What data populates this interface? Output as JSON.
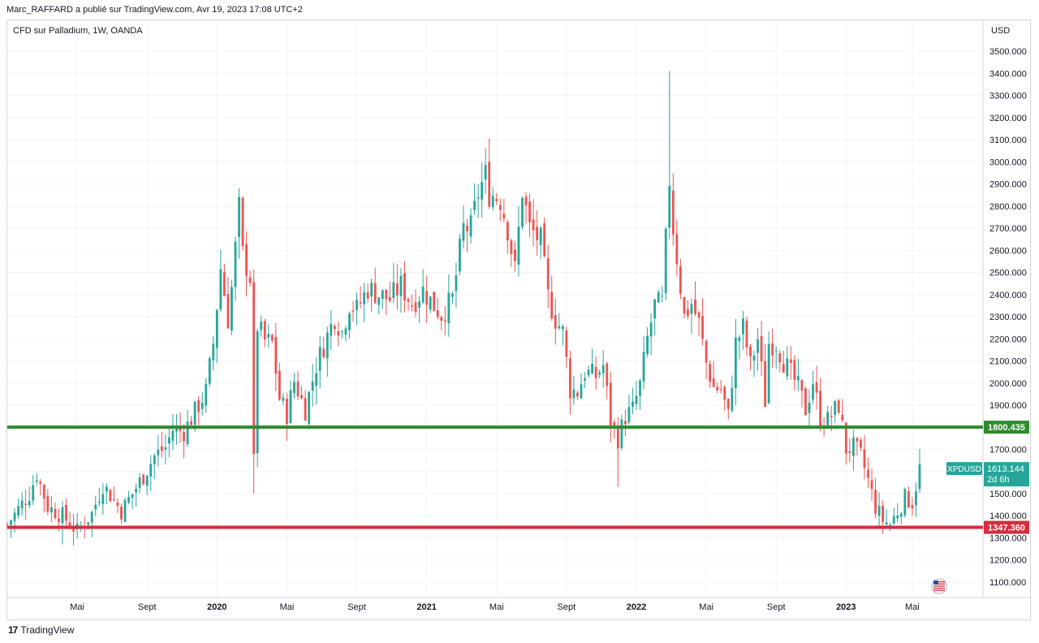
{
  "header": {
    "publisher_line": "Marc_RAFFARD a publié sur TradingView.com, Avr 19, 2023 17:08 UTC+2"
  },
  "chart": {
    "symbol_title": "CFD sur Palladium, 1W, OANDA"
  },
  "footer": {
    "brand": "TradingView"
  },
  "colors": {
    "up": "#26a69a",
    "down": "#ef5350",
    "grid": "#f0f3fa",
    "support_green": "#2e8b2e",
    "support_red": "#d32f3f",
    "price_tag": "#26a69a"
  },
  "chart_data": {
    "type": "candlestick",
    "title": "CFD sur Palladium, 1W, OANDA",
    "currency_label": "USD",
    "ylim": [
      1030,
      3640
    ],
    "y_ticks": [
      1100,
      1200,
      1300,
      1400,
      1500,
      1600,
      1700,
      1800,
      1900,
      2000,
      2100,
      2200,
      2300,
      2400,
      2500,
      2600,
      2700,
      2800,
      2900,
      3000,
      3100,
      3200,
      3300,
      3400,
      3500
    ],
    "y_tick_labels": [
      "1100.000",
      "1200.000",
      "1300.000",
      "1400.000",
      "1500.000",
      "1600.000",
      "1700.000",
      "1800.000",
      "1900.000",
      "2000.000",
      "2100.000",
      "2200.000",
      "2300.000",
      "2400.000",
      "2500.000",
      "2600.000",
      "2700.000",
      "2800.000",
      "2900.000",
      "3000.000",
      "3100.000",
      "3200.000",
      "3300.000",
      "3400.000",
      "3500.000"
    ],
    "x_ticks": [
      {
        "week": 19,
        "label": "Mai",
        "bold": false
      },
      {
        "week": 38,
        "label": "Sept",
        "bold": false
      },
      {
        "week": 57,
        "label": "2020",
        "bold": true
      },
      {
        "week": 76,
        "label": "Mai",
        "bold": false
      },
      {
        "week": 95,
        "label": "Sept",
        "bold": false
      },
      {
        "week": 114,
        "label": "2021",
        "bold": true
      },
      {
        "week": 133,
        "label": "Mai",
        "bold": false
      },
      {
        "week": 152,
        "label": "Sept",
        "bold": false
      },
      {
        "week": 171,
        "label": "2022",
        "bold": true
      },
      {
        "week": 190,
        "label": "Mai",
        "bold": false
      },
      {
        "week": 209,
        "label": "Sept",
        "bold": false
      },
      {
        "week": 228,
        "label": "2023",
        "bold": true
      },
      {
        "week": 246,
        "label": "Mai",
        "bold": false
      }
    ],
    "x_range_weeks": [
      0,
      265
    ],
    "horizontal_lines": [
      {
        "value": 1800.435,
        "label": "1800.435",
        "color": "#2e8b2e"
      },
      {
        "value": 1347.36,
        "label": "1347.360",
        "color": "#d32f3f"
      }
    ],
    "last_price": {
      "symbol": "XPDUSD",
      "value": "1613.144",
      "countdown": "2d 6h"
    },
    "close_path": [
      [
        0,
        1360
      ],
      [
        6,
        1500
      ],
      [
        8,
        1590
      ],
      [
        11,
        1440
      ],
      [
        15,
        1400
      ],
      [
        19,
        1330
      ],
      [
        23,
        1410
      ],
      [
        26,
        1540
      ],
      [
        29,
        1470
      ],
      [
        31,
        1420
      ],
      [
        34,
        1500
      ],
      [
        37,
        1580
      ],
      [
        40,
        1670
      ],
      [
        43,
        1710
      ],
      [
        45,
        1790
      ],
      [
        48,
        1780
      ],
      [
        51,
        1870
      ],
      [
        54,
        1960
      ],
      [
        56,
        2180
      ],
      [
        58,
        2520
      ],
      [
        60,
        2290
      ],
      [
        61,
        2430
      ],
      [
        63,
        2790
      ],
      [
        64,
        2580
      ],
      [
        66,
        2480
      ],
      [
        67,
        1640
      ],
      [
        68,
        2260
      ],
      [
        70,
        2190
      ],
      [
        72,
        2180
      ],
      [
        74,
        1930
      ],
      [
        76,
        1860
      ],
      [
        78,
        2010
      ],
      [
        81,
        1880
      ],
      [
        84,
        2080
      ],
      [
        86,
        2170
      ],
      [
        89,
        2300
      ],
      [
        91,
        2230
      ],
      [
        93,
        2360
      ],
      [
        95,
        2330
      ],
      [
        98,
        2430
      ],
      [
        101,
        2400
      ],
      [
        104,
        2380
      ],
      [
        107,
        2440
      ],
      [
        110,
        2360
      ],
      [
        113,
        2420
      ],
      [
        116,
        2350
      ],
      [
        118,
        2310
      ],
      [
        121,
        2380
      ],
      [
        124,
        2700
      ],
      [
        126,
        2700
      ],
      [
        128,
        2860
      ],
      [
        130,
        2940
      ],
      [
        131,
        2860
      ],
      [
        134,
        2830
      ],
      [
        136,
        2700
      ],
      [
        138,
        2510
      ],
      [
        140,
        2870
      ],
      [
        142,
        2700
      ],
      [
        145,
        2640
      ],
      [
        147,
        2390
      ],
      [
        149,
        2290
      ],
      [
        151,
        2230
      ],
      [
        153,
        1970
      ],
      [
        155,
        1960
      ],
      [
        157,
        2050
      ],
      [
        160,
        2030
      ],
      [
        162,
        2080
      ],
      [
        164,
        1830
      ],
      [
        166,
        1750
      ],
      [
        168,
        1850
      ],
      [
        170,
        1880
      ],
      [
        172,
        1990
      ],
      [
        174,
        2200
      ],
      [
        176,
        2350
      ],
      [
        178,
        2360
      ],
      [
        180,
        2920
      ],
      [
        181,
        2700
      ],
      [
        182,
        2570
      ],
      [
        184,
        2300
      ],
      [
        186,
        2360
      ],
      [
        188,
        2270
      ],
      [
        190,
        2090
      ],
      [
        192,
        1980
      ],
      [
        194,
        1970
      ],
      [
        196,
        1850
      ],
      [
        198,
        2180
      ],
      [
        200,
        2250
      ],
      [
        202,
        2080
      ],
      [
        204,
        2200
      ],
      [
        206,
        1920
      ],
      [
        207,
        2180
      ],
      [
        209,
        2180
      ],
      [
        211,
        2100
      ],
      [
        213,
        2040
      ],
      [
        215,
        1980
      ],
      [
        217,
        1880
      ],
      [
        219,
        2010
      ],
      [
        221,
        1840
      ],
      [
        223,
        1830
      ],
      [
        226,
        1900
      ],
      [
        228,
        1700
      ],
      [
        230,
        1710
      ],
      [
        232,
        1670
      ],
      [
        234,
        1560
      ],
      [
        236,
        1440
      ],
      [
        238,
        1380
      ],
      [
        240,
        1360
      ],
      [
        242,
        1420
      ],
      [
        244,
        1480
      ],
      [
        246,
        1460
      ],
      [
        248,
        1613
      ]
    ],
    "wick_extremes": [
      {
        "week": 180,
        "high": 3410
      },
      {
        "week": 67,
        "low": 1500
      },
      {
        "week": 166,
        "low": 1530
      },
      {
        "week": 240,
        "low": 1330
      },
      {
        "week": 15,
        "low": 1270
      },
      {
        "week": 63,
        "high": 2880
      }
    ]
  }
}
